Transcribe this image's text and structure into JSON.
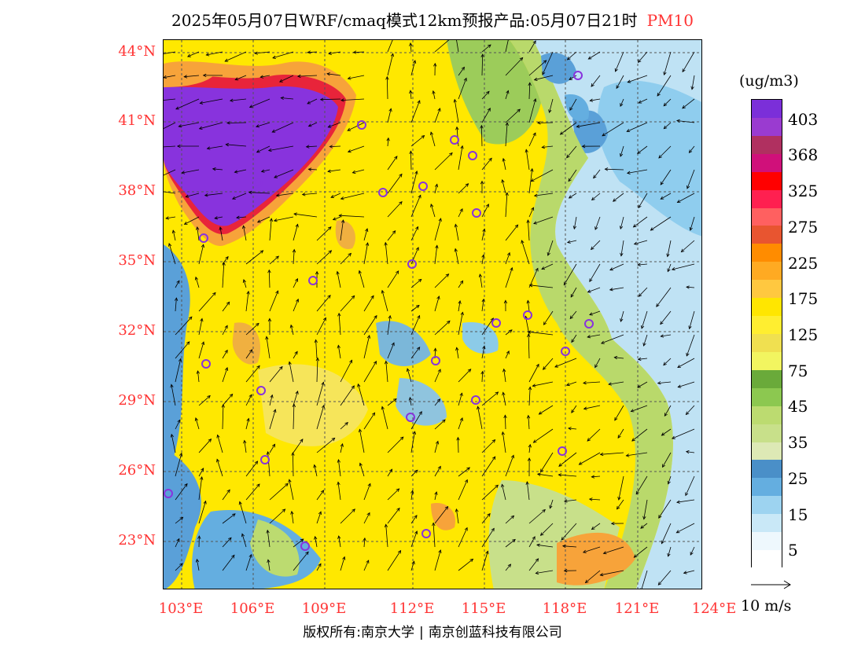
{
  "header": {
    "title": "2025年05月07日WRF/cmaq模式12km预报产品:05月07日21时",
    "pollutant": "PM10"
  },
  "map": {
    "lat_ticks": [
      "44°N",
      "41°N",
      "38°N",
      "35°N",
      "32°N",
      "29°N",
      "26°N",
      "23°N"
    ],
    "lon_ticks": [
      "103°E",
      "106°E",
      "109°E",
      "112°E",
      "115°E",
      "118°E",
      "121°E",
      "124°E"
    ],
    "colors": {
      "purple": "#8833dd",
      "yellow": "#ffe800",
      "light_yellow": "#f6e55a",
      "green": "#b9d96b",
      "blue": "#5aa0d8",
      "light_blue": "#bfe2f4",
      "orange": "#f7a33a",
      "red": "#e8243a"
    }
  },
  "legend": {
    "unit": "(ug/m3)",
    "labels": [
      "403",
      "368",
      "325",
      "275",
      "225",
      "175",
      "125",
      "75",
      "45",
      "35",
      "25",
      "15",
      "5"
    ],
    "colors": [
      "#7b2fd9",
      "#9a3bd0",
      "#b03060",
      "#d0107a",
      "#ff0000",
      "#ff2050",
      "#ff6060",
      "#e85530",
      "#ff8c00",
      "#ffaa22",
      "#ffc840",
      "#ffe600",
      "#ffee30",
      "#f0e050",
      "#f2f560",
      "#6aaa3a",
      "#8cc850",
      "#bcdb70",
      "#c8e08a",
      "#dde9b5",
      "#4a8fc8",
      "#64aee0",
      "#9dd3f0",
      "#c9e8f7",
      "#eef8fd",
      "#ffffff"
    ]
  },
  "wind_reference": {
    "label": "10  m/s"
  },
  "footer": {
    "copyright_prefix": "版权所有:",
    "org1": "南京大学",
    "org2": "南京创蓝科技有限公司"
  }
}
